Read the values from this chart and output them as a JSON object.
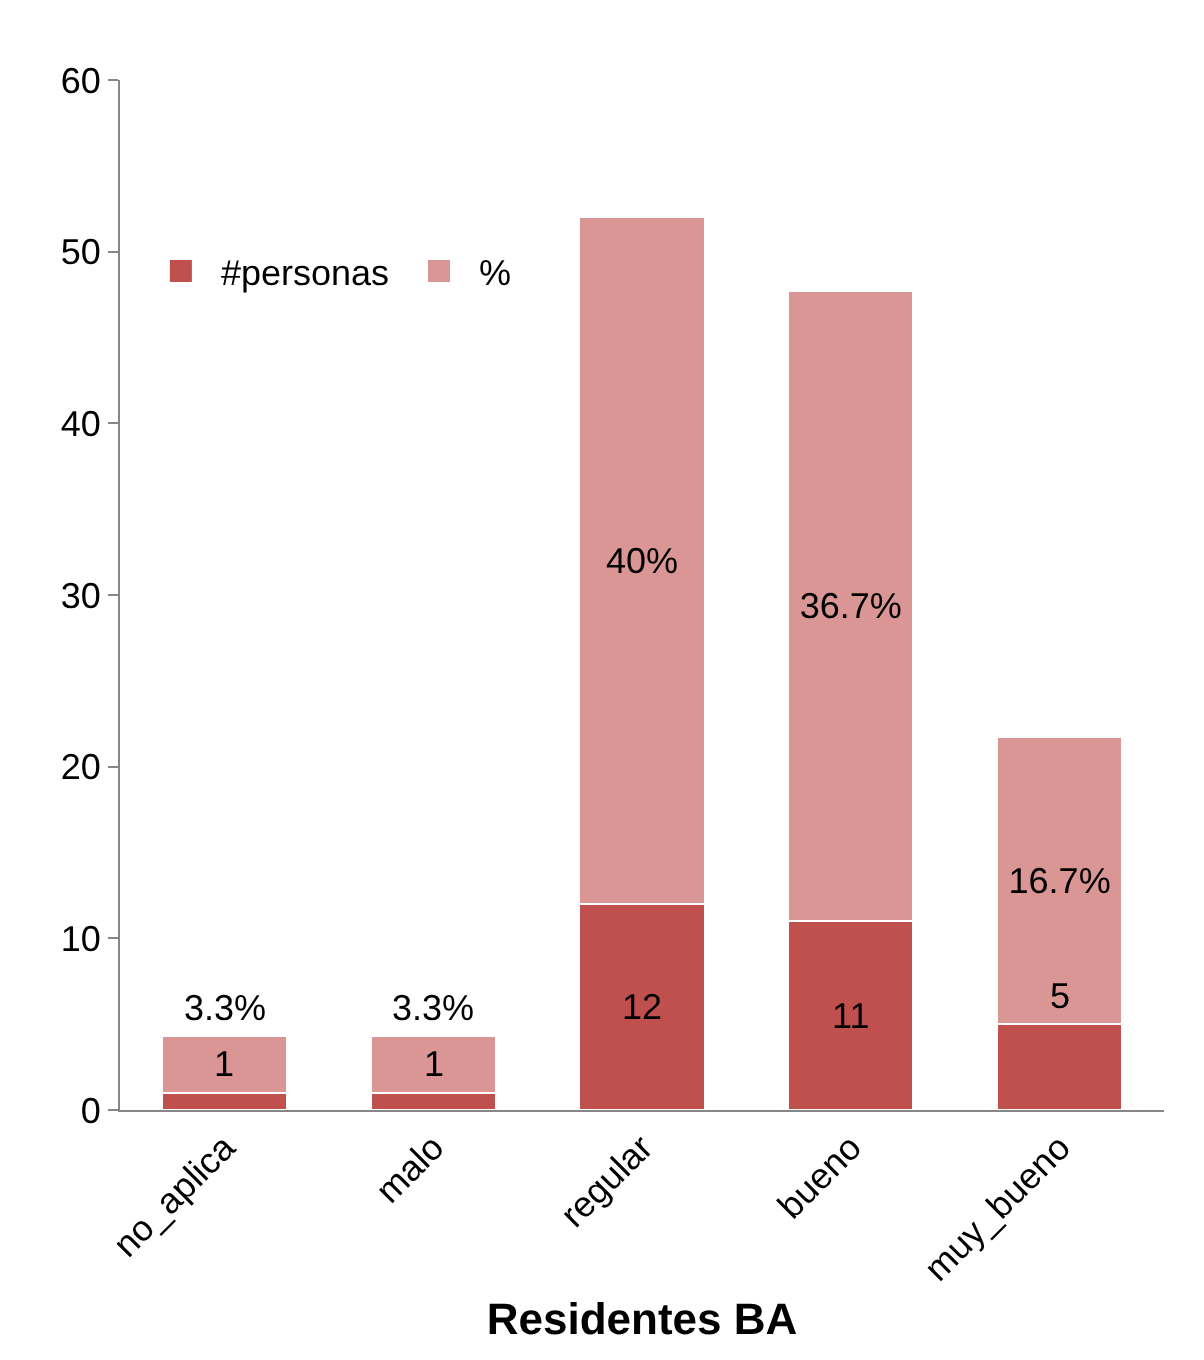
{
  "chart_data": {
    "type": "bar",
    "stacked": true,
    "xlabel": "Residentes BA",
    "categories": [
      "no_aplica",
      "malo",
      "regular",
      "bueno",
      "muy_bueno"
    ],
    "series": [
      {
        "name": "#personas",
        "color": "#c0504d",
        "values": [
          1,
          1,
          12,
          11,
          5
        ],
        "value_labels": [
          "1",
          "1",
          "12",
          "11",
          "5"
        ]
      },
      {
        "name": "%",
        "color": "#d99694",
        "values": [
          3.3,
          3.3,
          40,
          36.7,
          16.7
        ],
        "value_labels": [
          "3.3%",
          "3.3%",
          "40%",
          "36.7%",
          "16.7%"
        ]
      }
    ],
    "ylim": [
      0,
      60
    ],
    "yticks": [
      0,
      10,
      20,
      30,
      40,
      50,
      60
    ],
    "grid": false,
    "legend": "top left"
  }
}
